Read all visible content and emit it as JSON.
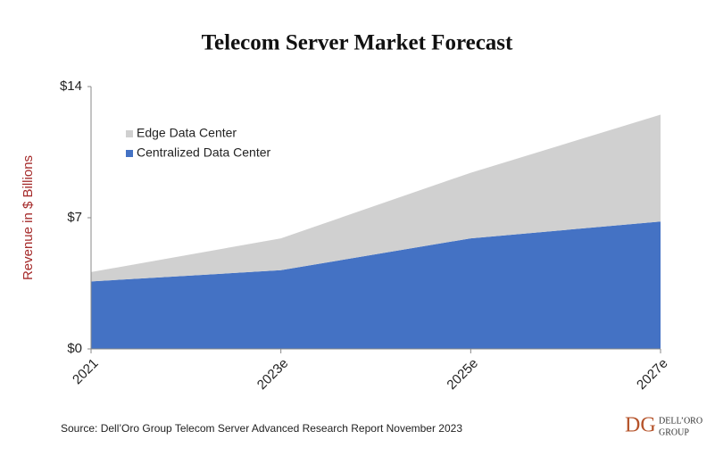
{
  "chart_data": {
    "type": "stacked-area",
    "title": "Telecom Server Market Forecast",
    "y_label": "Revenue in $ Billions",
    "categories": [
      "2021",
      "2023e",
      "2025e",
      "2027e"
    ],
    "series": [
      {
        "name": "Centralized Data Center",
        "color": "#4472c4",
        "values": [
          3.6,
          4.2,
          5.9,
          6.8
        ]
      },
      {
        "name": "Edge Data Center",
        "color": "#d0d0d0",
        "values": [
          0.5,
          1.7,
          3.5,
          5.7
        ]
      }
    ],
    "ylim": [
      0,
      14
    ],
    "yticks": [
      {
        "value": 0,
        "label": "$0"
      },
      {
        "value": 7,
        "label": "$7"
      },
      {
        "value": 14,
        "label": "$14"
      }
    ],
    "legend": "upper-left",
    "source": "Source: Dell’Oro Group Telecom Server Advanced Research Report November 2023",
    "logo": {
      "mark": "DG",
      "name": "DELL’ORO",
      "sub": "GROUP"
    }
  }
}
